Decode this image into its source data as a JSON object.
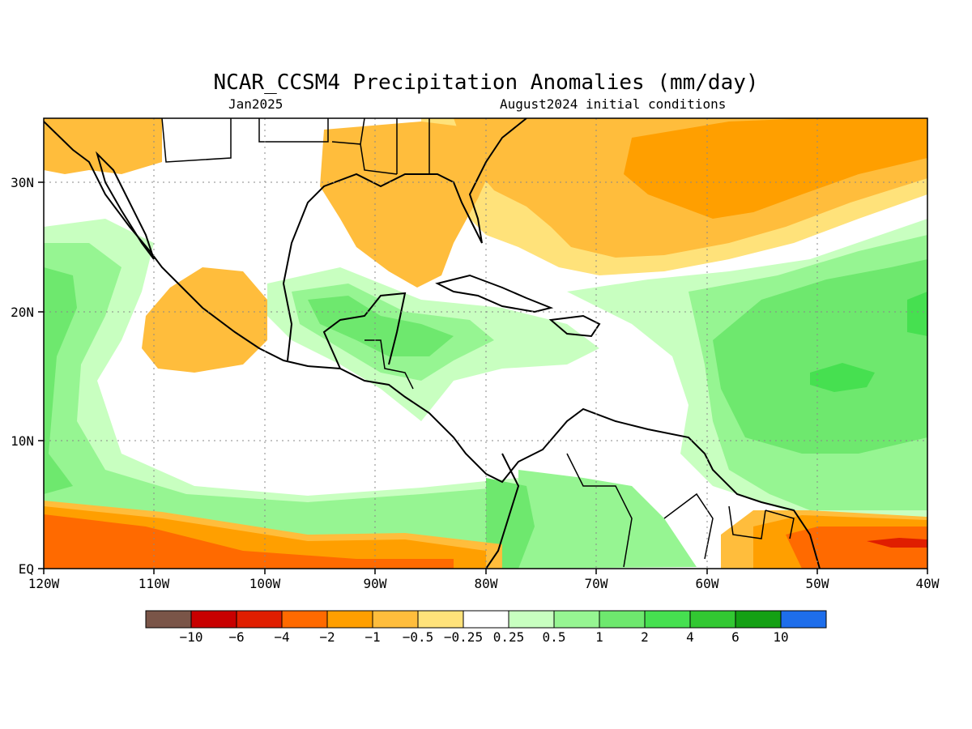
{
  "title": "NCAR_CCSM4 Precipitation Anomalies (mm/day)",
  "subtitle_left": "Jan2025",
  "subtitle_right": "August2024 initial conditions",
  "lat_labels": [
    "30N",
    "20N",
    "10N",
    "EQ"
  ],
  "lon_labels": [
    "120W",
    "110W",
    "100W",
    "90W",
    "80W",
    "70W",
    "60W",
    "50W",
    "40W"
  ],
  "colorbar": {
    "colors": [
      "#7a5548",
      "#c80000",
      "#e01e00",
      "#ff6a00",
      "#ff9f00",
      "#ffbd3c",
      "#ffe27a",
      "#ffffff",
      "#c8ffc0",
      "#96f592",
      "#6ee86e",
      "#46e050",
      "#32c832",
      "#14a014",
      "#1e6eeb"
    ],
    "labels": [
      "−10",
      "−6",
      "−4",
      "−2",
      "−1",
      "−0.5",
      "−0.25",
      "0.25",
      "0.5",
      "1",
      "2",
      "4",
      "6",
      "10"
    ]
  },
  "field_colors": {
    "orange_light": "#ffbd3c",
    "orange": "#ff9f00",
    "orange_dark": "#ff6a00",
    "red": "#e01e00",
    "yellow": "#ffe27a",
    "green_pale": "#c8ffc0",
    "green_light": "#96f592",
    "green": "#6ee86e",
    "green_bright": "#46e050"
  }
}
